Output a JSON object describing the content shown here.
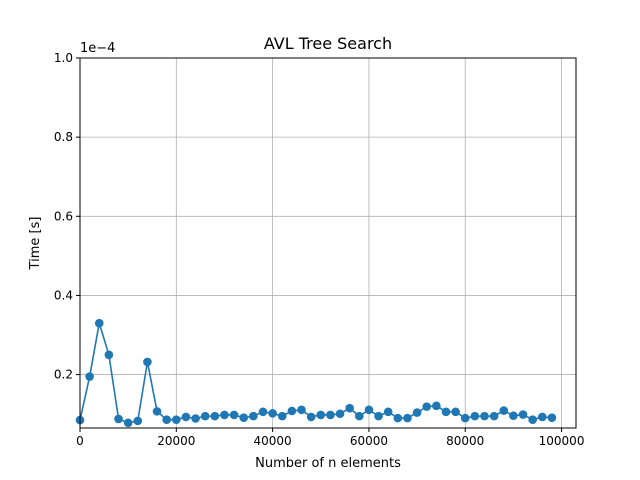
{
  "chart_data": {
    "type": "line",
    "title": "AVL Tree Search",
    "xlabel": "Number of n elements",
    "ylabel": "Time [s]",
    "y_scale_label": "1e−4",
    "xlim": [
      0,
      103000
    ],
    "ylim": [
      0.065,
      1.0
    ],
    "x_ticks": [
      0,
      20000,
      40000,
      60000,
      80000,
      100000
    ],
    "x_tick_labels": [
      "0",
      "20000",
      "40000",
      "60000",
      "80000",
      "100000"
    ],
    "y_ticks": [
      0.2,
      0.4,
      0.6,
      0.8,
      1.0
    ],
    "y_tick_labels": [
      "0.2",
      "0.4",
      "0.6",
      "0.8",
      "1.0"
    ],
    "grid": true,
    "series": [
      {
        "name": "AVL Tree Search",
        "color": "#1f77b4",
        "marker": "circle",
        "x": [
          0,
          2000,
          4000,
          6000,
          8000,
          10000,
          12000,
          14000,
          16000,
          18000,
          20000,
          22000,
          24000,
          26000,
          28000,
          30000,
          32000,
          34000,
          36000,
          38000,
          40000,
          42000,
          44000,
          46000,
          48000,
          50000,
          52000,
          54000,
          56000,
          58000,
          60000,
          62000,
          64000,
          66000,
          68000,
          70000,
          72000,
          74000,
          76000,
          78000,
          80000,
          82000,
          84000,
          86000,
          88000,
          90000,
          92000,
          94000,
          96000,
          98000
        ],
        "y": [
          0.085,
          0.195,
          0.33,
          0.25,
          0.088,
          0.078,
          0.083,
          0.232,
          0.107,
          0.086,
          0.086,
          0.093,
          0.089,
          0.095,
          0.095,
          0.098,
          0.098,
          0.091,
          0.095,
          0.106,
          0.102,
          0.095,
          0.108,
          0.111,
          0.093,
          0.098,
          0.098,
          0.101,
          0.115,
          0.095,
          0.111,
          0.095,
          0.106,
          0.09,
          0.09,
          0.104,
          0.119,
          0.121,
          0.106,
          0.106,
          0.09,
          0.095,
          0.095,
          0.095,
          0.109,
          0.096,
          0.099,
          0.086,
          0.093,
          0.091
        ]
      }
    ]
  },
  "colors": {
    "series": "#1f77b4",
    "grid": "#b0b0b0",
    "axes": "#000000",
    "background": "#ffffff"
  }
}
